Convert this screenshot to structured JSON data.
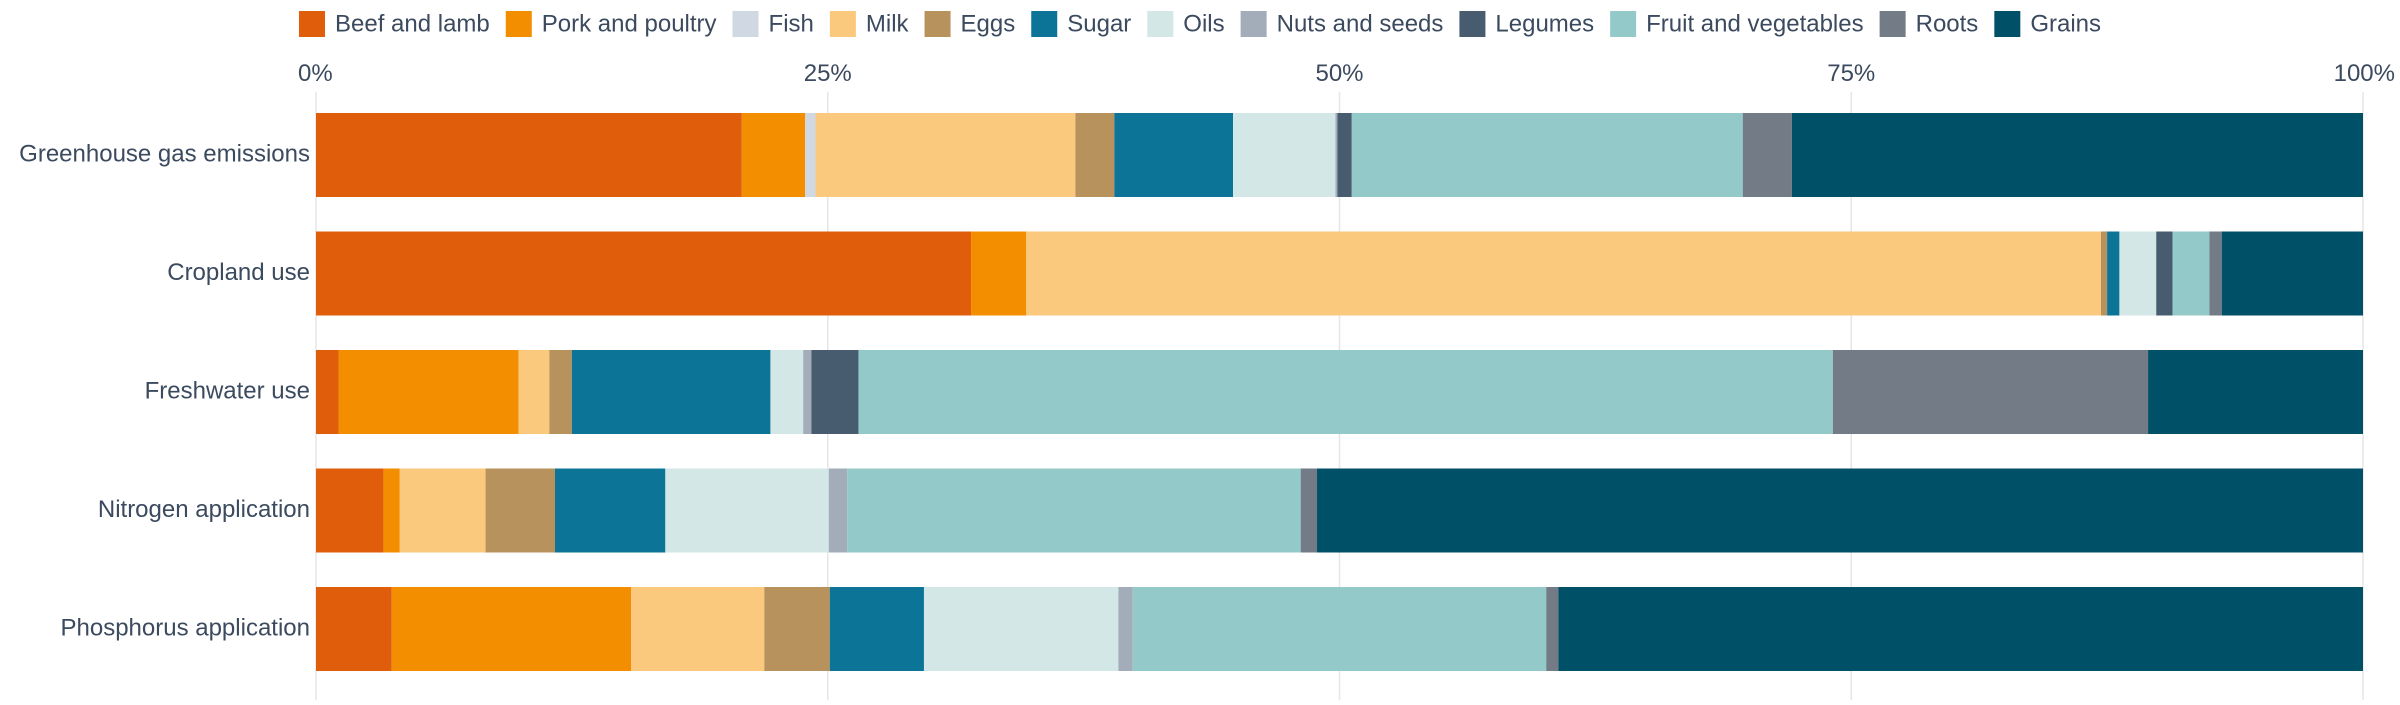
{
  "chart_data": {
    "type": "bar",
    "orientation": "horizontal",
    "stacked": true,
    "normalized": true,
    "xlim": [
      0,
      100
    ],
    "x_ticks": [
      0,
      25,
      50,
      75,
      100
    ],
    "x_tick_labels": [
      "0%",
      "25%",
      "50%",
      "75%",
      "100%"
    ],
    "x_axis_position": "top",
    "grid": true,
    "legend_position": "top",
    "categories": [
      "Greenhouse gas emissions",
      "Cropland use",
      "Freshwater use",
      "Nitrogen application",
      "Phosphorus application"
    ],
    "series": [
      {
        "name": "Beef and lamb",
        "color": "#e05e0b",
        "values": [
          20.8,
          32.0,
          1.1,
          3.3,
          3.7
        ]
      },
      {
        "name": "Pork and poultry",
        "color": "#f28e00",
        "values": [
          3.1,
          2.7,
          8.8,
          0.8,
          11.7
        ]
      },
      {
        "name": "Fish",
        "color": "#d0d9e3",
        "values": [
          0.5,
          0.0,
          0.0,
          0.0,
          0.0
        ]
      },
      {
        "name": "Milk",
        "color": "#fbc97e",
        "values": [
          12.7,
          52.5,
          1.5,
          4.2,
          6.5
        ]
      },
      {
        "name": "Eggs",
        "color": "#b8925c",
        "values": [
          1.9,
          0.3,
          1.1,
          3.4,
          3.2
        ]
      },
      {
        "name": "Sugar",
        "color": "#0b7497",
        "values": [
          5.8,
          0.6,
          9.7,
          5.4,
          4.6
        ]
      },
      {
        "name": "Oils",
        "color": "#d2e7e6",
        "values": [
          5.0,
          1.8,
          1.6,
          8.0,
          9.5
        ]
      },
      {
        "name": "Nuts and seeds",
        "color": "#a2adb9",
        "values": [
          0.1,
          0.0,
          0.4,
          0.9,
          0.7
        ]
      },
      {
        "name": "Legumes",
        "color": "#485c6f",
        "values": [
          0.7,
          0.8,
          2.3,
          0.0,
          0.0
        ]
      },
      {
        "name": "Fruit and vegetables",
        "color": "#94c9c9",
        "values": [
          19.1,
          1.8,
          47.6,
          22.2,
          20.2
        ]
      },
      {
        "name": "Roots",
        "color": "#737b86",
        "values": [
          2.4,
          0.6,
          15.4,
          0.8,
          0.6
        ]
      },
      {
        "name": "Grains",
        "color": "#005068",
        "values": [
          27.9,
          6.9,
          10.5,
          51.2,
          39.3
        ]
      }
    ]
  }
}
